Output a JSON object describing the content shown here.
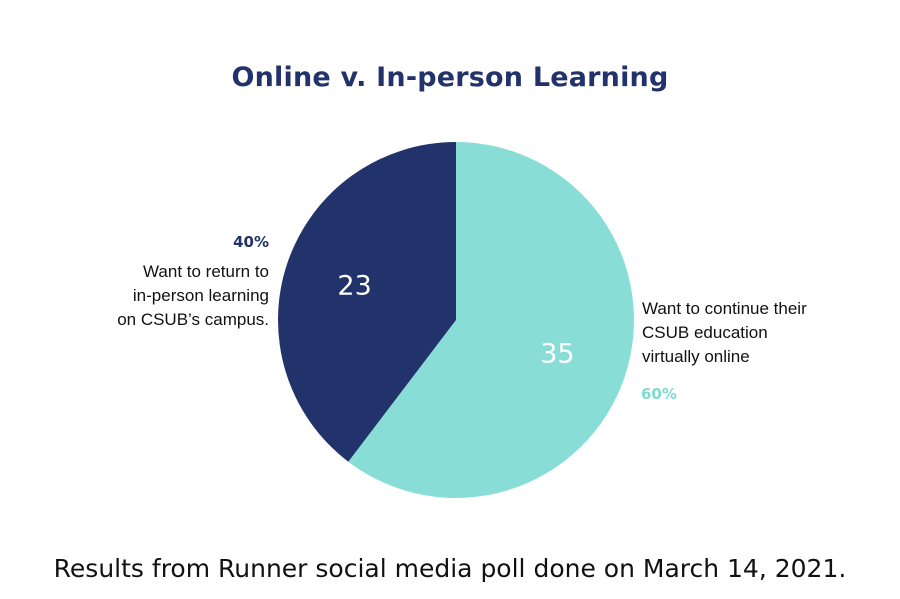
{
  "chart_data": {
    "type": "pie",
    "title": "Online v. In-person Learning",
    "slices": [
      {
        "value": 35,
        "value_label": "35",
        "percent_label": "60%",
        "description": [
          "Want to continue their",
          "CSUB education",
          "virtually online"
        ],
        "color": "#88ded6",
        "text_color": "#7fdad3"
      },
      {
        "value": 23,
        "value_label": "23",
        "percent_label": "40%",
        "description": [
          "Want to return to",
          "in-person learning",
          "on CSUB’s campus."
        ],
        "color": "#22326b",
        "text_color": "#22326b"
      }
    ],
    "start": "12 o'clock",
    "direction": "clockwise"
  },
  "footnote": "Results from Runner social media poll done on March 14, 2021."
}
